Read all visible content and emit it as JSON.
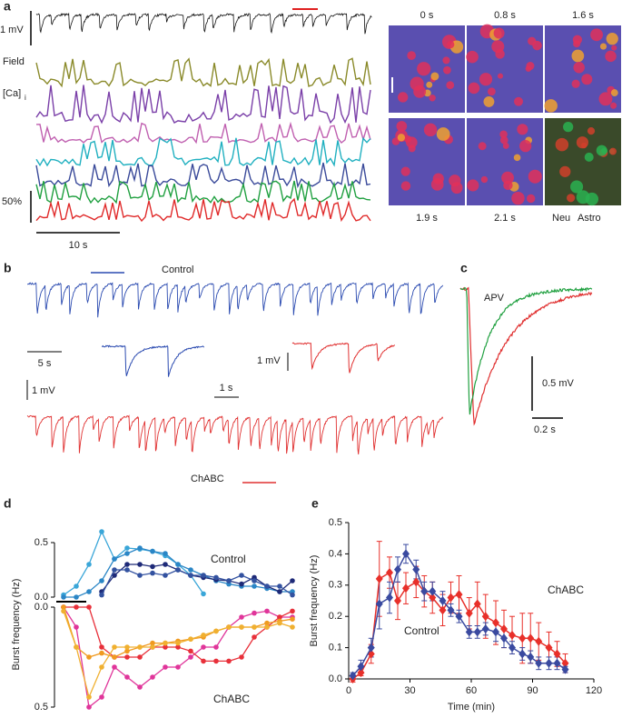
{
  "figure": {
    "a": {
      "panel": "a",
      "mv": "1 mV",
      "field": "Field",
      "ca": "[Ca]",
      "ca_sub": "i",
      "pct": "50%",
      "sec": "10 s",
      "times_top": [
        "0 s",
        "0.8 s",
        "1.6 s"
      ],
      "times_bottom": [
        "1.9 s",
        "2.1 s"
      ],
      "neu": "Neu",
      "astro": "Astro"
    },
    "b": {
      "panel": "b",
      "control": "Control",
      "s5": "5 s",
      "mv1": "1 mV",
      "s1": "1 s",
      "mv2": "1 mV",
      "chabc": "ChABC"
    },
    "c": {
      "panel": "c",
      "apv": "APV",
      "mv": "0.5  mV",
      "sec": "0.2 s"
    },
    "d": {
      "panel": "d"
    },
    "e": {
      "panel": "e"
    }
  },
  "chart_data": [
    {
      "type": "line",
      "y_label": "Burst frequency (Hz)",
      "groups": [
        {
          "name": "Control",
          "ylim": [
            0,
            0.5
          ],
          "yticks": [
            {
              "value": 0,
              "label": "0.0"
            },
            0.5
          ],
          "series": [
            {
              "color": "#3aa6d8",
              "values": [
                0.02,
                0.1,
                0.3,
                0.6,
                0.35,
                0.45,
                0.44,
                0.42,
                0.38,
                0.3,
                0.2,
                0.03
              ]
            },
            {
              "color": "#2a86c6",
              "values": [
                0.0,
                0.0,
                0.05,
                0.15,
                0.35,
                0.4,
                0.45,
                0.42,
                0.4,
                0.3,
                0.25,
                0.2,
                0.15,
                0.12,
                0.1,
                0.1,
                0.08,
                0.05,
                0.05
              ]
            },
            {
              "color": "#1e2a78",
              "values": [
                null,
                null,
                null,
                0.05,
                0.2,
                0.3,
                0.3,
                0.28,
                0.3,
                0.25,
                0.2,
                0.18,
                0.16,
                0.15,
                0.12,
                0.18,
                0.1,
                0.05,
                0.15
              ]
            },
            {
              "color": "#3352a0",
              "values": [
                null,
                null,
                null,
                0.02,
                0.25,
                0.25,
                0.2,
                0.22,
                0.2,
                0.25,
                0.2,
                0.2,
                0.18,
                0.15,
                0.2,
                0.15,
                0.1,
                0.1,
                0.02
              ]
            }
          ]
        },
        {
          "name": "ChABC",
          "ylim": [
            0,
            0.5
          ],
          "yticks": [
            {
              "value": 0,
              "label": "0.0"
            },
            0.5
          ],
          "series": [
            {
              "color": "#e0359a",
              "values": [
                0.0,
                0.1,
                0.5,
                0.45,
                0.3,
                0.35,
                0.4,
                0.35,
                0.3,
                0.3,
                0.25,
                0.2,
                0.2,
                0.1,
                0.05,
                0.03,
                0.02,
                0.05,
                0.05
              ]
            },
            {
              "color": "#e8303a",
              "values": [
                0.0,
                0.0,
                0.0,
                0.2,
                0.25,
                0.25,
                0.25,
                0.2,
                0.2,
                0.2,
                0.22,
                0.27,
                0.27,
                0.27,
                0.25,
                0.15,
                0.1,
                0.05,
                0.02
              ]
            },
            {
              "color": "#f09a20",
              "values": [
                0.0,
                0.2,
                0.25,
                0.23,
                0.25,
                0.22,
                0.2,
                0.18,
                0.18,
                0.17,
                0.16,
                0.15,
                0.12,
                0.1,
                0.1,
                0.1,
                0.08,
                0.07,
                0.06
              ]
            },
            {
              "color": "#f0b030",
              "values": [
                0.02,
                0.2,
                0.45,
                0.3,
                0.2,
                0.2,
                0.2,
                0.2,
                0.18,
                0.18,
                0.16,
                0.14,
                0.12,
                0.1,
                0.1,
                0.1,
                0.1,
                0.08,
                0.1
              ]
            }
          ]
        }
      ]
    },
    {
      "type": "line",
      "y_label": "Burst frequency (Hz)",
      "x_label": "Time (min)",
      "xlim": [
        0,
        120
      ],
      "xticks": [
        0,
        30,
        60,
        90,
        120
      ],
      "ylim": [
        0,
        0.5
      ],
      "yticks": [
        {
          "value": 0,
          "label": "0.0"
        },
        0.1,
        0.2,
        0.3,
        0.4,
        0.5
      ],
      "x": [
        2,
        6,
        11,
        15,
        20,
        24,
        28,
        33,
        37,
        41,
        46,
        50,
        54,
        59,
        63,
        67,
        72,
        76,
        80,
        85,
        89,
        93,
        98,
        102,
        106
      ],
      "series": [
        {
          "name": "ChABC",
          "color": "#e8302a",
          "values": [
            0.0,
            0.02,
            0.08,
            0.32,
            0.34,
            0.25,
            0.29,
            0.31,
            0.28,
            0.26,
            0.22,
            0.26,
            0.27,
            0.21,
            0.24,
            0.2,
            0.18,
            0.16,
            0.14,
            0.13,
            0.13,
            0.12,
            0.1,
            0.08,
            0.05
          ],
          "errors": [
            0.01,
            0.01,
            0.03,
            0.12,
            0.05,
            0.06,
            0.05,
            0.05,
            0.05,
            0.05,
            0.05,
            0.05,
            0.06,
            0.05,
            0.07,
            0.07,
            0.07,
            0.06,
            0.06,
            0.08,
            0.08,
            0.06,
            0.05,
            0.04,
            0.03
          ]
        },
        {
          "name": "Control",
          "color": "#3a4aa0",
          "values": [
            0.01,
            0.04,
            0.1,
            0.24,
            0.26,
            0.35,
            0.4,
            0.35,
            0.28,
            0.28,
            0.25,
            0.22,
            0.2,
            0.15,
            0.15,
            0.16,
            0.15,
            0.13,
            0.1,
            0.08,
            0.07,
            0.05,
            0.05,
            0.05,
            0.03
          ],
          "errors": [
            0.01,
            0.02,
            0.03,
            0.08,
            0.05,
            0.04,
            0.03,
            0.03,
            0.03,
            0.03,
            0.03,
            0.02,
            0.02,
            0.02,
            0.02,
            0.02,
            0.03,
            0.03,
            0.02,
            0.02,
            0.02,
            0.02,
            0.02,
            0.02,
            0.01
          ]
        }
      ]
    }
  ]
}
